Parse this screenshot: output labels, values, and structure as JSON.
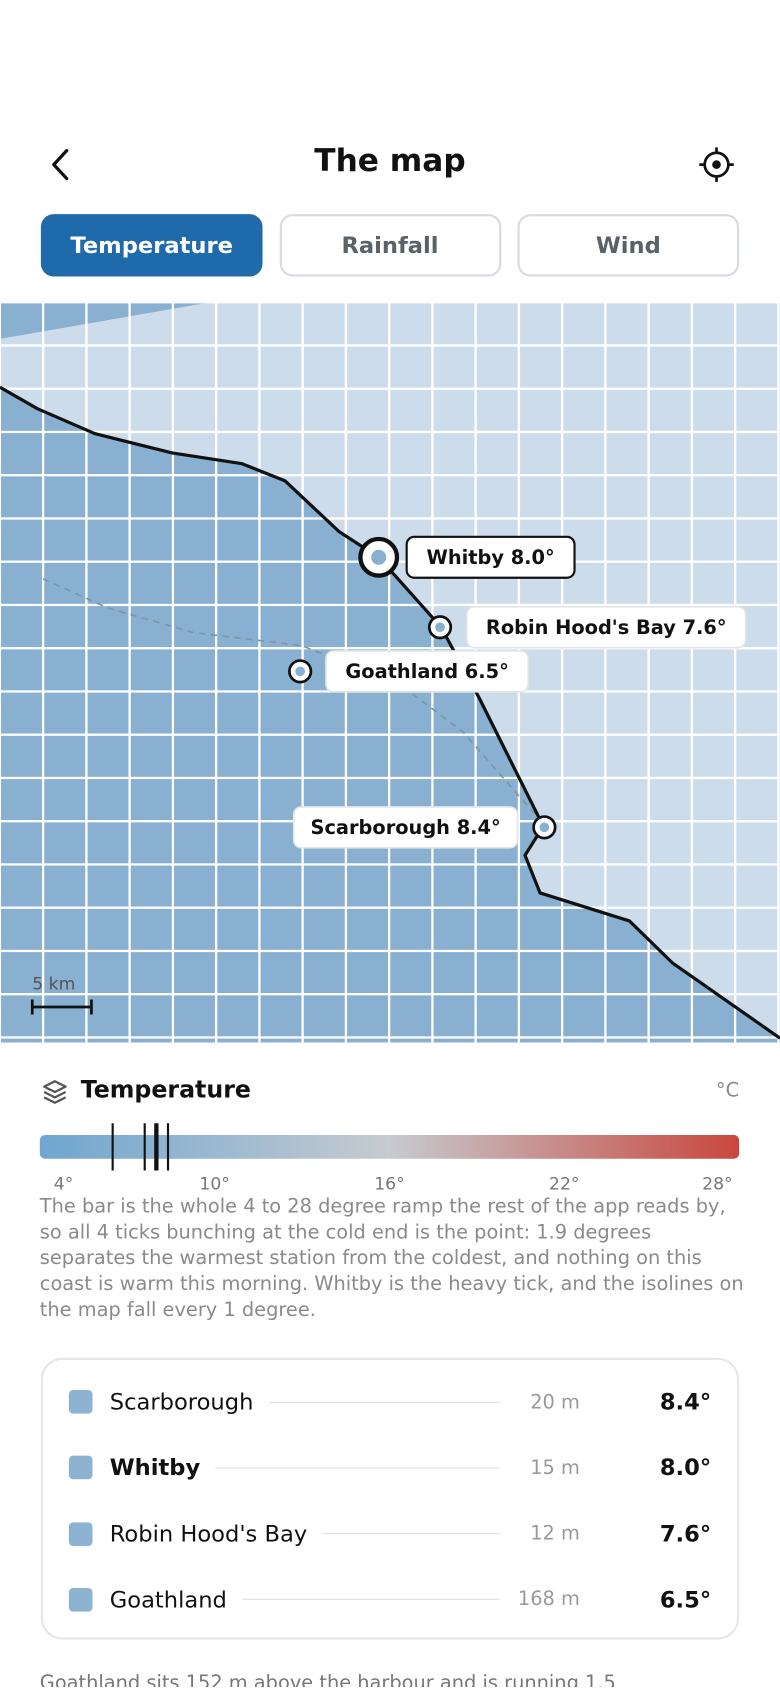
{
  "header": {
    "title": "The map"
  },
  "tabs": [
    {
      "label": "Temperature",
      "active": true
    },
    {
      "label": "Rainfall",
      "active": false
    },
    {
      "label": "Wind",
      "active": false
    }
  ],
  "map": {
    "scale_label": "5 km"
  },
  "legend": {
    "title": "Temperature",
    "unit": "°C",
    "range": [
      4,
      28
    ],
    "ticks": [
      {
        "value": 4,
        "label": "4°"
      },
      {
        "value": 10,
        "label": "10°"
      },
      {
        "value": 16,
        "label": "16°"
      },
      {
        "value": 22,
        "label": "22°"
      },
      {
        "value": 28,
        "label": "28°"
      }
    ],
    "description": "The bar is the whole 4 to 28 degree ramp the rest of the app reads by, so all 4 ticks bunching at the cold end is the point: 1.9 degrees separates the warmest station from the coldest, and nothing on this coast is warm this morning. Whitby is the heavy tick, and the isolines on the map fall every 1 degree."
  },
  "stations": [
    {
      "name": "Scarborough",
      "map_label": "Scarborough 8.4°",
      "elevation": "20 m",
      "value": 8.4,
      "value_label": "8.4°",
      "emphasis": false
    },
    {
      "name": "Whitby",
      "map_label": "Whitby 8.0°",
      "elevation": "15 m",
      "value": 8.0,
      "value_label": "8.0°",
      "emphasis": true
    },
    {
      "name": "Robin Hood's Bay",
      "map_label": "Robin Hood's Bay 7.6°",
      "elevation": "12 m",
      "value": 7.6,
      "value_label": "7.6°",
      "emphasis": false
    },
    {
      "name": "Goathland",
      "map_label": "Goathland 6.5°",
      "elevation": "168 m",
      "value": 6.5,
      "value_label": "6.5°",
      "emphasis": false
    }
  ],
  "footer_text": "Goathland sits 152 m above the harbour and is running 1.5"
}
